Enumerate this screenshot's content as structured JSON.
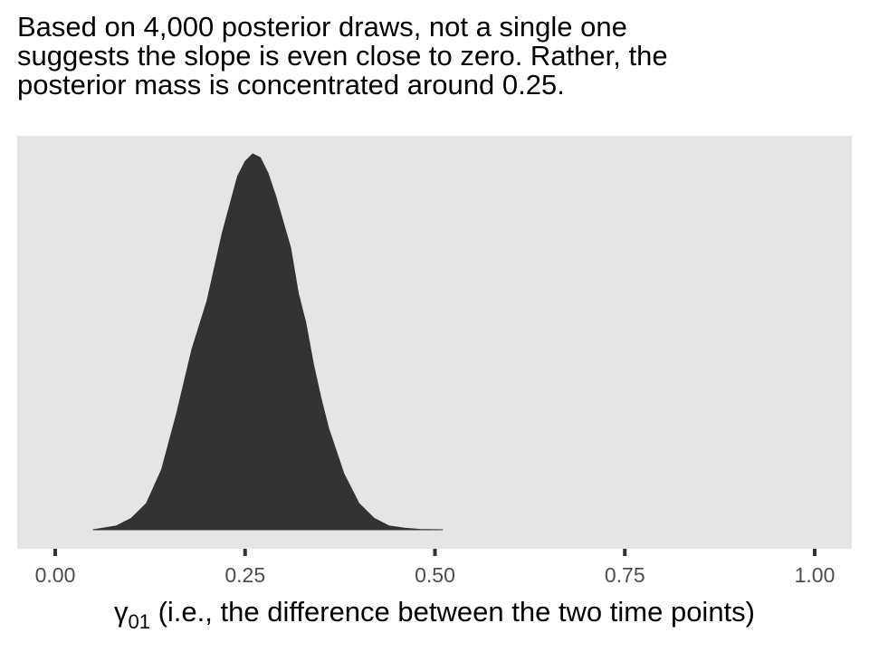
{
  "title_lines": [
    "Based on 4,000 posterior draws, not a single one",
    "suggests the slope is even close to zero. Rather, the",
    "posterior mass is concentrated around 0.25."
  ],
  "chart_data": {
    "type": "area",
    "title": "Based on 4,000 posterior draws, not a single one suggests the slope is even close to zero. Rather, the posterior mass is concentrated around 0.25.",
    "xlabel_symbol": "γ",
    "xlabel_subscript": "01",
    "xlabel_rest": " (i.e., the difference between the two time points)",
    "ylabel": "",
    "xlim": [
      -0.05,
      1.01
    ],
    "ylim": [
      0,
      1
    ],
    "x_ticks": [
      0.0,
      0.25,
      0.5,
      0.75,
      1.0
    ],
    "x_tick_labels": [
      "0.00",
      "0.25",
      "0.50",
      "0.75",
      "1.00"
    ],
    "y_axis_visible": false,
    "grid": false,
    "background": "#e5e5e5",
    "fill_color": "#333333",
    "density": {
      "x": [
        0.05,
        0.08,
        0.1,
        0.12,
        0.14,
        0.16,
        0.18,
        0.2,
        0.22,
        0.24,
        0.25,
        0.26,
        0.27,
        0.28,
        0.29,
        0.3,
        0.31,
        0.32,
        0.33,
        0.34,
        0.35,
        0.36,
        0.38,
        0.4,
        0.42,
        0.44,
        0.46,
        0.48,
        0.51
      ],
      "y": [
        0.0,
        0.01,
        0.03,
        0.07,
        0.16,
        0.31,
        0.48,
        0.61,
        0.79,
        0.94,
        0.98,
        1.0,
        0.99,
        0.95,
        0.89,
        0.82,
        0.75,
        0.63,
        0.55,
        0.44,
        0.35,
        0.27,
        0.15,
        0.07,
        0.03,
        0.01,
        0.004,
        0.001,
        0.0
      ]
    }
  }
}
